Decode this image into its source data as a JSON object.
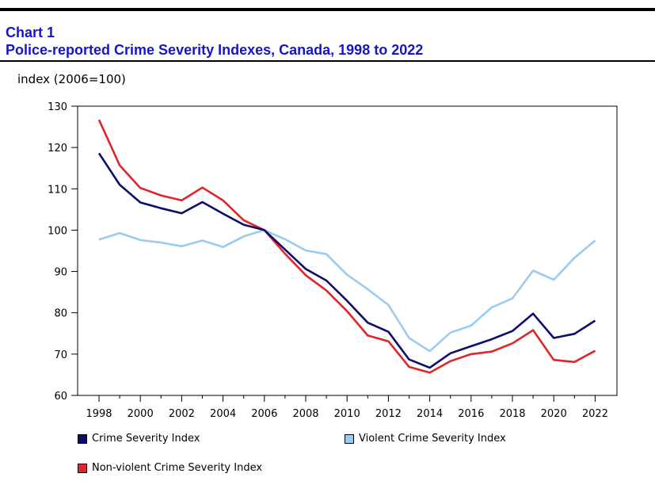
{
  "header": {
    "chart_label": "Chart 1",
    "title": "Police-reported Crime Severity Indexes, Canada, 1998 to 2022"
  },
  "colors": {
    "crime_severity": "#0d0d6b",
    "violent": "#9ccbf1",
    "non_violent": "#e0262b"
  },
  "chart_data": {
    "type": "line",
    "title": "Police-reported Crime Severity Indexes, Canada, 1998 to 2022",
    "ylabel": "index (2006=100)",
    "xlabel": "",
    "ylim": [
      60,
      130
    ],
    "yticks": [
      60,
      70,
      80,
      90,
      100,
      110,
      120,
      130
    ],
    "x": [
      1998,
      1999,
      2000,
      2001,
      2002,
      2003,
      2004,
      2005,
      2006,
      2007,
      2008,
      2009,
      2010,
      2011,
      2012,
      2013,
      2014,
      2015,
      2016,
      2017,
      2018,
      2019,
      2020,
      2021,
      2022
    ],
    "xticks": [
      "1998",
      "2000",
      "2002",
      "2004",
      "2006",
      "2008",
      "2010",
      "2012",
      "2014",
      "2016",
      "2018",
      "2020",
      "2022"
    ],
    "grid": false,
    "legend_position": "bottom",
    "series": [
      {
        "name": "Crime Severity Index",
        "color": "#0d0d6b",
        "values": [
          118.6,
          111.0,
          106.7,
          105.3,
          104.1,
          106.8,
          104.0,
          101.3,
          100.0,
          95.3,
          90.6,
          87.8,
          82.9,
          77.6,
          75.4,
          68.7,
          66.7,
          70.2,
          71.9,
          73.6,
          75.6,
          79.8,
          73.9,
          74.9,
          78.1
        ]
      },
      {
        "name": "Violent Crime Severity Index",
        "color": "#9ccbf1",
        "values": [
          97.7,
          99.3,
          97.6,
          97.0,
          96.1,
          97.5,
          95.9,
          98.5,
          100.0,
          97.8,
          95.1,
          94.2,
          89.2,
          85.7,
          81.9,
          73.9,
          70.7,
          75.2,
          76.9,
          81.3,
          83.5,
          90.2,
          88.0,
          93.3,
          97.5
        ]
      },
      {
        "name": "Non-violent Crime Severity Index",
        "color": "#e0262b",
        "values": [
          126.7,
          115.7,
          110.2,
          108.4,
          107.2,
          110.3,
          107.2,
          102.4,
          100.0,
          94.3,
          89.1,
          85.4,
          80.4,
          74.5,
          73.1,
          66.9,
          65.5,
          68.3,
          70.0,
          70.6,
          72.6,
          75.8,
          68.6,
          68.1,
          70.8
        ]
      }
    ]
  }
}
